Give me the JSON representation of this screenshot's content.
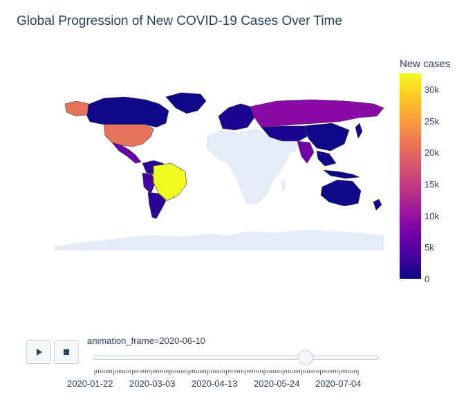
{
  "chart_data": {
    "type": "choropleth",
    "title": "Global Progression of New COVID-19 Cases Over Time",
    "colorbar": {
      "title": "New cases",
      "ticks": [
        "0",
        "5k",
        "10k",
        "15k",
        "20k",
        "25k",
        "30k"
      ],
      "range": [
        0,
        32500
      ],
      "colorscale": [
        "#0d0887",
        "#46039f",
        "#7201a8",
        "#9c179e",
        "#bd3786",
        "#d8576b",
        "#ed7953",
        "#fb9f3a",
        "#fdca26",
        "#f0f921"
      ]
    },
    "regions": [
      {
        "name": "Brazil",
        "value": 32500
      },
      {
        "name": "United States",
        "value": 21000
      },
      {
        "name": "Alaska",
        "value": 21000
      },
      {
        "name": "Russia",
        "value": 9000
      },
      {
        "name": "Mexico",
        "value": 4000
      },
      {
        "name": "Peru",
        "value": 5000
      },
      {
        "name": "Chile",
        "value": 5000
      },
      {
        "name": "India",
        "value": 10000
      },
      {
        "name": "Canada",
        "value": 500
      },
      {
        "name": "Europe",
        "value": 1500
      },
      {
        "name": "China",
        "value": 100
      },
      {
        "name": "Australia",
        "value": 10
      }
    ],
    "animation": {
      "frame_label": "animation_frame=2020-06-10",
      "current_frame": "2020-06-10",
      "axis_labels": [
        "2020-01-22",
        "2020-03-03",
        "2020-04-13",
        "2020-05-24",
        "2020-07-04"
      ]
    }
  },
  "colors": {
    "no_data": "#e5ecf6",
    "border": "#444444",
    "text": "#2a3f5f"
  },
  "controls": {
    "play_icon": "play-icon",
    "stop_icon": "stop-icon"
  }
}
